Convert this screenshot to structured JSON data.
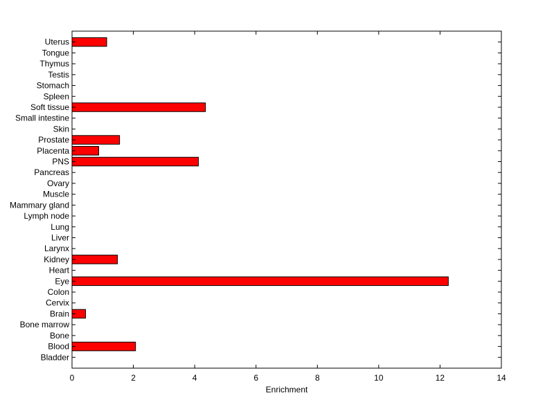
{
  "chart_data": {
    "type": "bar",
    "orientation": "horizontal",
    "title": "",
    "xlabel": "Enrichment",
    "ylabel": "",
    "xlim": [
      0,
      14
    ],
    "xticks": [
      "0",
      "2",
      "4",
      "6",
      "8",
      "10",
      "12",
      "14"
    ],
    "grid": false,
    "bar_color": "#ff0000",
    "categories": [
      "Bladder",
      "Blood",
      "Bone",
      "Bone marrow",
      "Brain",
      "Cervix",
      "Colon",
      "Eye",
      "Heart",
      "Kidney",
      "Larynx",
      "Liver",
      "Lung",
      "Lymph node",
      "Mammary gland",
      "Muscle",
      "Ovary",
      "Pancreas",
      "PNS",
      "Placenta",
      "Prostate",
      "Skin",
      "Small intestine",
      "Soft tissue",
      "Spleen",
      "Stomach",
      "Testis",
      "Thymus",
      "Tongue",
      "Uterus"
    ],
    "values": [
      0,
      2.07,
      0,
      0,
      0.44,
      0,
      0,
      12.27,
      0,
      1.48,
      0,
      0,
      0,
      0,
      0,
      0,
      0,
      0,
      4.12,
      0.87,
      1.55,
      0,
      0,
      4.35,
      0,
      0,
      0,
      0,
      0,
      1.13
    ]
  }
}
